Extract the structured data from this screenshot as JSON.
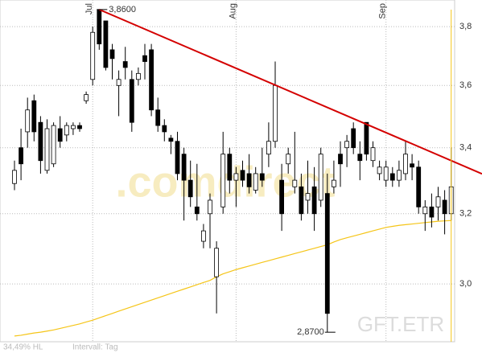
{
  "chart_data": {
    "type": "candlestick",
    "log_scale": true,
    "grid": true,
    "ylim": [
      2.845,
      3.894
    ],
    "yticks": [
      {
        "value": 3.0,
        "label": "3,0"
      },
      {
        "value": 3.2,
        "label": "3,2"
      },
      {
        "value": 3.4,
        "label": "3,4"
      },
      {
        "value": 3.6,
        "label": "3,6"
      },
      {
        "value": 3.8,
        "label": "3,8"
      }
    ],
    "categories": [
      null,
      null,
      null,
      null,
      null,
      null,
      null,
      null,
      null,
      null,
      null,
      null,
      "Jul",
      null,
      null,
      null,
      null,
      null,
      null,
      null,
      null,
      null,
      null,
      null,
      null,
      null,
      null,
      null,
      null,
      null,
      null,
      null,
      null,
      null,
      "Aug",
      null,
      null,
      null,
      null,
      null,
      null,
      null,
      null,
      null,
      null,
      null,
      null,
      null,
      null,
      null,
      null,
      null,
      null,
      null,
      null,
      null,
      null,
      "Sep",
      null,
      null,
      null,
      null,
      null,
      null,
      null,
      null,
      null,
      null
    ],
    "open": [
      3.29,
      3.4,
      3.45,
      3.55,
      3.48,
      3.33,
      3.35,
      3.46,
      3.44,
      3.46,
      3.47,
      3.55,
      3.62,
      3.86,
      3.82,
      3.72,
      3.6,
      3.68,
      3.62,
      3.62,
      3.7,
      3.72,
      3.52,
      3.47,
      3.43,
      3.42,
      3.38,
      3.3,
      3.22,
      3.12,
      3.2,
      3.02,
      3.22,
      3.38,
      3.3,
      3.33,
      3.32,
      3.27,
      3.32,
      3.38,
      3.42,
      3.3,
      3.35,
      3.28,
      3.28,
      3.24,
      3.28,
      3.24,
      3.26,
      3.28,
      3.38,
      3.4,
      3.46,
      3.38,
      3.48,
      3.36,
      3.32,
      3.3,
      3.32,
      3.3,
      3.32,
      3.35,
      3.34,
      3.2,
      3.22,
      3.22,
      3.24,
      3.2
    ],
    "high": [
      3.36,
      3.46,
      3.56,
      3.57,
      3.5,
      3.49,
      3.48,
      3.5,
      3.48,
      3.48,
      3.48,
      3.58,
      3.8,
      3.86,
      3.82,
      3.74,
      3.65,
      3.73,
      3.65,
      3.66,
      3.74,
      3.74,
      3.56,
      3.49,
      3.44,
      3.45,
      3.4,
      3.36,
      3.35,
      3.17,
      3.26,
      3.12,
      3.45,
      3.4,
      3.34,
      3.36,
      3.38,
      3.34,
      3.4,
      3.48,
      3.68,
      3.35,
      3.4,
      3.45,
      3.32,
      3.36,
      3.34,
      3.4,
      3.32,
      3.36,
      3.42,
      3.44,
      3.48,
      3.42,
      3.48,
      3.42,
      3.36,
      3.36,
      3.34,
      3.36,
      3.42,
      3.38,
      3.36,
      3.24,
      3.26,
      3.28,
      3.27,
      3.4
    ],
    "low": [
      3.27,
      3.3,
      3.4,
      3.42,
      3.32,
      3.32,
      3.34,
      3.4,
      3.42,
      3.44,
      3.45,
      3.54,
      3.6,
      3.72,
      3.65,
      3.62,
      3.5,
      3.62,
      3.45,
      3.6,
      3.62,
      3.5,
      3.45,
      3.42,
      3.38,
      3.3,
      3.18,
      3.22,
      3.18,
      3.1,
      3.1,
      2.92,
      3.2,
      3.26,
      3.22,
      3.28,
      3.26,
      3.26,
      3.28,
      3.34,
      3.4,
      3.15,
      3.32,
      3.26,
      3.18,
      3.2,
      3.15,
      3.22,
      2.87,
      3.26,
      3.28,
      3.34,
      3.38,
      3.3,
      3.36,
      3.34,
      3.3,
      3.28,
      3.28,
      3.28,
      3.3,
      3.3,
      3.2,
      3.15,
      3.16,
      3.18,
      3.14,
      3.18
    ],
    "close": [
      3.33,
      3.35,
      3.52,
      3.45,
      3.36,
      3.46,
      3.47,
      3.42,
      3.47,
      3.47,
      3.46,
      3.57,
      3.78,
      3.74,
      3.66,
      3.69,
      3.62,
      3.66,
      3.48,
      3.64,
      3.68,
      3.52,
      3.47,
      3.45,
      3.42,
      3.32,
      3.3,
      3.25,
      3.2,
      3.15,
      3.24,
      3.1,
      3.38,
      3.3,
      3.32,
      3.3,
      3.28,
      3.32,
      3.3,
      3.42,
      3.6,
      3.2,
      3.38,
      3.3,
      3.2,
      3.26,
      3.2,
      3.38,
      2.92,
      3.3,
      3.35,
      3.42,
      3.4,
      3.36,
      3.38,
      3.4,
      3.34,
      3.34,
      3.3,
      3.33,
      3.38,
      3.34,
      3.22,
      3.22,
      3.19,
      3.25,
      3.2,
      3.28
    ],
    "up_color": "#ffffff",
    "down_color": "#000000",
    "moving_average": {
      "color": "#f5c518",
      "values": [
        2.86,
        2.862,
        2.865,
        2.868,
        2.87,
        2.873,
        2.876,
        2.88,
        2.884,
        2.888,
        2.892,
        2.897,
        2.902,
        2.908,
        2.914,
        2.92,
        2.926,
        2.932,
        2.938,
        2.944,
        2.95,
        2.956,
        2.962,
        2.968,
        2.974,
        2.98,
        2.986,
        2.992,
        2.998,
        3.004,
        3.01,
        3.02,
        3.028,
        3.034,
        3.04,
        3.045,
        3.05,
        3.055,
        3.06,
        3.065,
        3.07,
        3.075,
        3.08,
        3.085,
        3.09,
        3.095,
        3.1,
        3.105,
        3.11,
        3.118,
        3.125,
        3.13,
        3.135,
        3.14,
        3.145,
        3.15,
        3.155,
        3.16,
        3.163,
        3.166,
        3.168,
        3.17,
        3.172,
        3.174,
        3.176,
        3.178,
        3.179,
        3.18
      ]
    },
    "trendline": {
      "color": "#d40000",
      "x": [
        13,
        67
      ],
      "values": [
        3.86,
        3.36
      ]
    },
    "annotations": [
      {
        "text": "3,8600",
        "x": 13,
        "value": 3.86
      },
      {
        "text": "2,8700",
        "x": 48,
        "value": 2.87
      }
    ],
    "watermark": ".comdirect",
    "symbol": "GFT.ETR",
    "footer": [
      "34,49% HL",
      "Intervall: Tag"
    ]
  }
}
